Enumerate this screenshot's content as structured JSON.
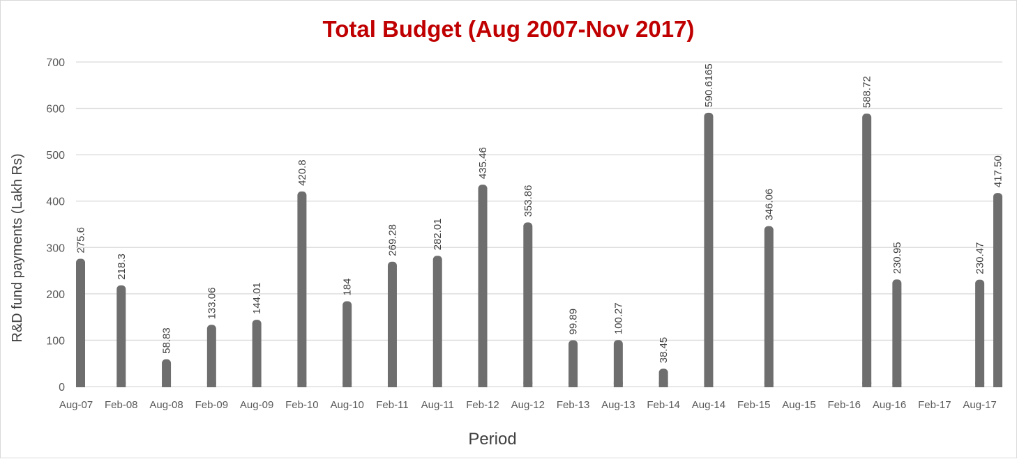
{
  "chart_data": {
    "type": "bar",
    "title": "Total Budget (Aug 2007-Nov 2017)",
    "xlabel": "Period",
    "ylabel": "R&D fund payments (Lakh Rs)",
    "ylim": [
      0,
      700
    ],
    "yticks": [
      "0",
      "100",
      "200",
      "300",
      "400",
      "500",
      "600",
      "700"
    ],
    "grid": true,
    "tick_labels": [
      "Aug-07",
      "Feb-08",
      "Aug-08",
      "Feb-09",
      "Aug-09",
      "Feb-10",
      "Aug-10",
      "Feb-11",
      "Aug-11",
      "Feb-12",
      "Aug-12",
      "Feb-13",
      "Aug-13",
      "Feb-14",
      "Aug-14",
      "Feb-15",
      "Aug-15",
      "Feb-16",
      "Aug-16",
      "Feb-17",
      "Aug-17"
    ],
    "points": [
      {
        "date": "2007-08",
        "value": 275.6,
        "label": "275.6"
      },
      {
        "date": "2008-02",
        "value": 218.3,
        "label": "218.3"
      },
      {
        "date": "2008-08",
        "value": 58.83,
        "label": "58.83"
      },
      {
        "date": "2009-02",
        "value": 133.06,
        "label": "133.06"
      },
      {
        "date": "2009-08",
        "value": 144.01,
        "label": "144.01"
      },
      {
        "date": "2010-02",
        "value": 420.8,
        "label": "420.8"
      },
      {
        "date": "2010-08",
        "value": 184,
        "label": "184"
      },
      {
        "date": "2011-02",
        "value": 269.28,
        "label": "269.28"
      },
      {
        "date": "2011-08",
        "value": 282.01,
        "label": "282.01"
      },
      {
        "date": "2012-02",
        "value": 435.46,
        "label": "435.46"
      },
      {
        "date": "2012-08",
        "value": 353.86,
        "label": "353.86"
      },
      {
        "date": "2013-02",
        "value": 99.89,
        "label": "99.89"
      },
      {
        "date": "2013-08",
        "value": 100.27,
        "label": "100.27"
      },
      {
        "date": "2014-02",
        "value": 38.45,
        "label": "38.45"
      },
      {
        "date": "2014-08",
        "value": 590.6165,
        "label": "590.6165"
      },
      {
        "date": "2015-04",
        "value": 346.06,
        "label": "346.06"
      },
      {
        "date": "2016-05",
        "value": 588.72,
        "label": "588.72"
      },
      {
        "date": "2016-09",
        "value": 230.95,
        "label": "230.95"
      },
      {
        "date": "2017-08",
        "value": 230.47,
        "label": "230.47"
      },
      {
        "date": "2017-11",
        "value": 417.5,
        "label": "417.50"
      }
    ]
  },
  "colors": {
    "bar": "#6e6e6e",
    "title": "#c00000",
    "axis_text": "#595959",
    "grid": "#d9d9d9"
  }
}
